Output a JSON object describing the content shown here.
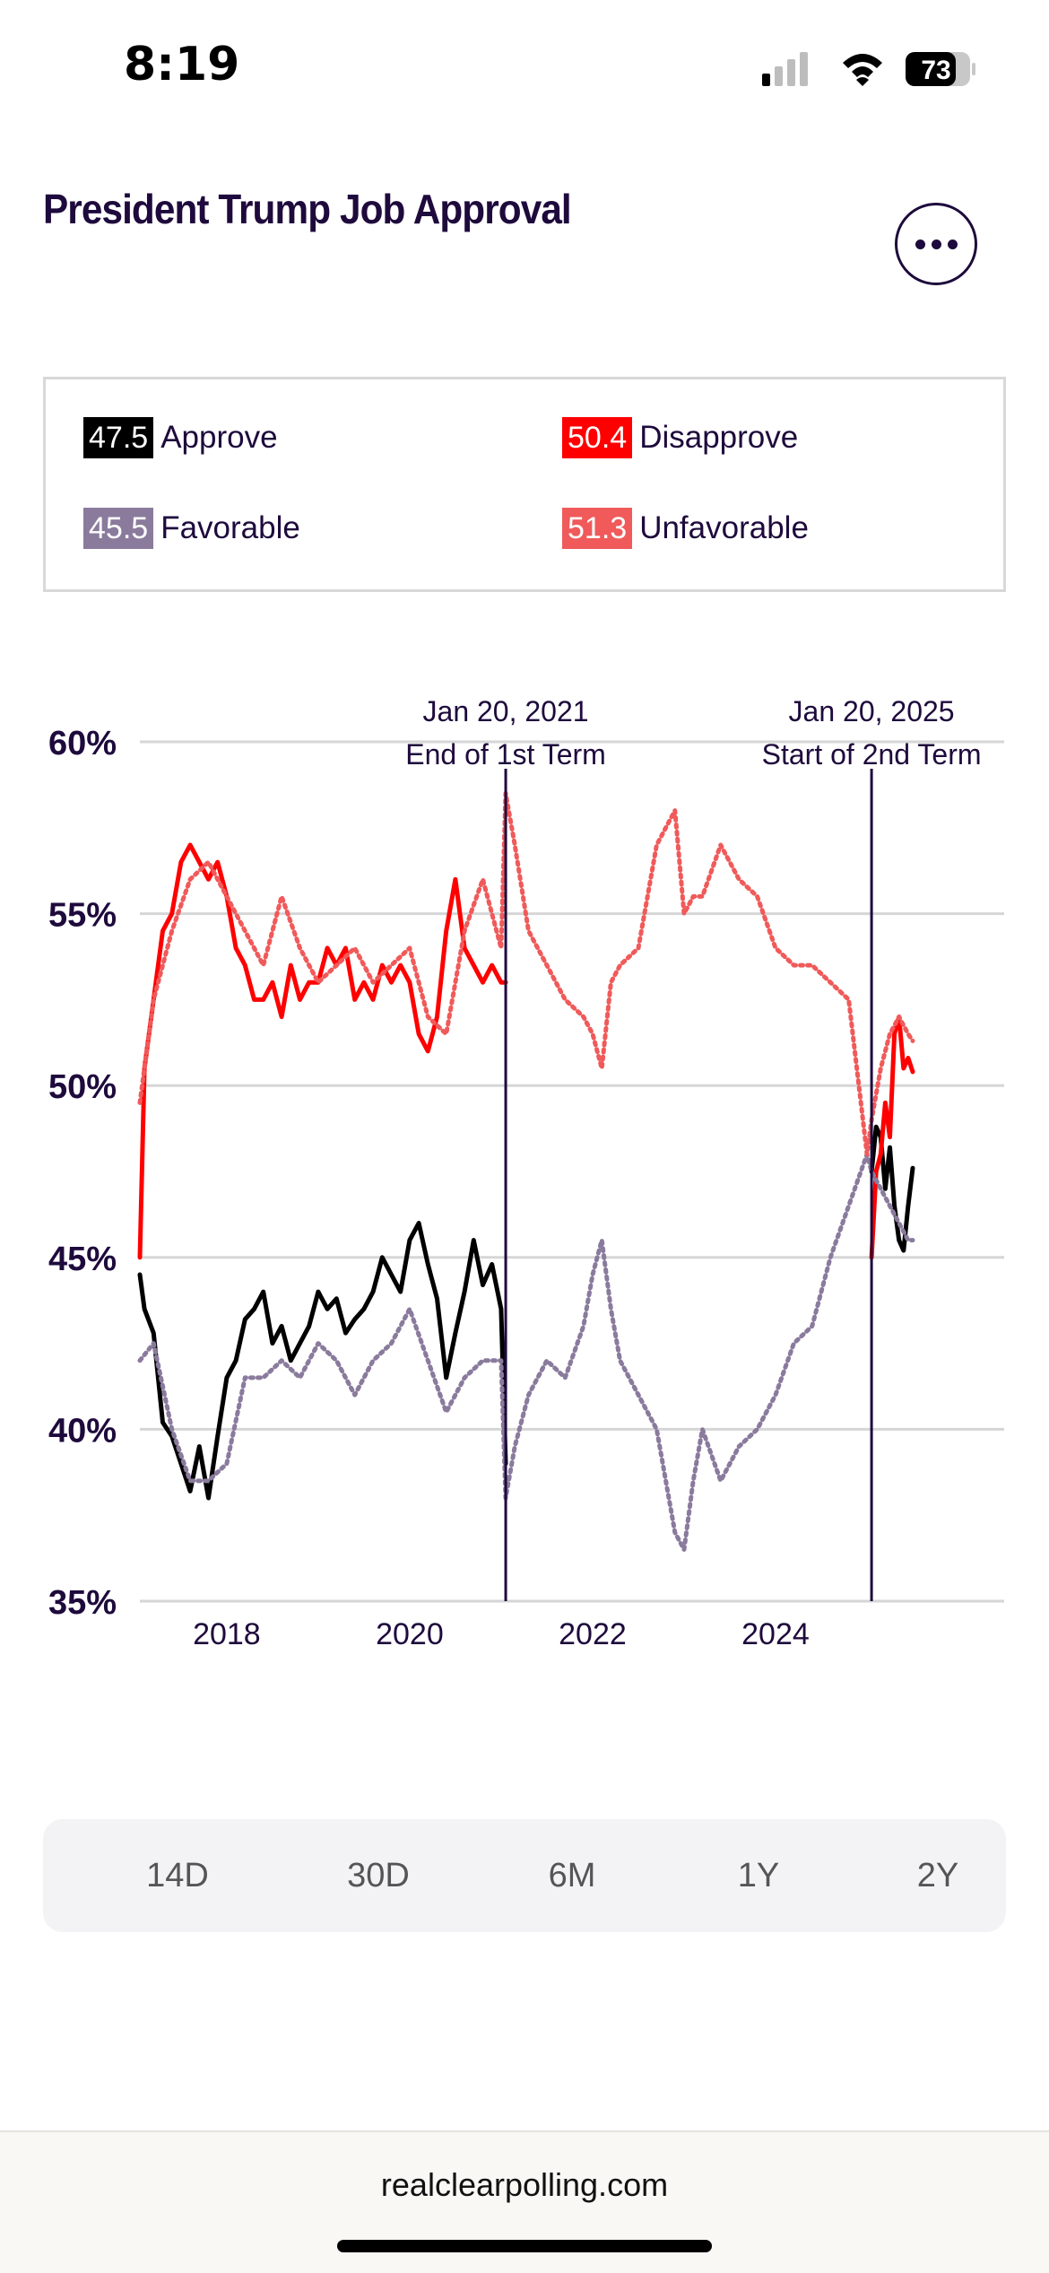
{
  "status_bar": {
    "time": "8:19",
    "battery": "73"
  },
  "header": {
    "title": "President Trump Job Approval"
  },
  "legend": [
    {
      "value": "47.5",
      "label": "Approve",
      "color": "#000000"
    },
    {
      "value": "50.4",
      "label": "Disapprove",
      "color": "#ff0000"
    },
    {
      "value": "45.5",
      "label": "Favorable",
      "color": "#8a7b9d"
    },
    {
      "value": "51.3",
      "label": "Unfavorable",
      "color": "#f05a5a"
    }
  ],
  "range_buttons": [
    "14D",
    "30D",
    "6M",
    "1Y",
    "2Y"
  ],
  "footer": {
    "url": "realclearpolling.com"
  },
  "chart_data": {
    "type": "line",
    "ylim": [
      35,
      60
    ],
    "xlim": [
      2017.05,
      2026.5
    ],
    "yticks": [
      "35%",
      "40%",
      "45%",
      "50%",
      "55%",
      "60%"
    ],
    "xticks": [
      "2018",
      "2020",
      "2022",
      "2024"
    ],
    "grid": true,
    "annotations": [
      {
        "x": 2021.05,
        "line1": "Jan 20, 2021",
        "line2": "End of 1st Term"
      },
      {
        "x": 2025.05,
        "line1": "Jan 20, 2025",
        "line2": "Start of 2nd Term"
      }
    ],
    "series": [
      {
        "name": "Approve",
        "color": "#000000",
        "style": "solid",
        "x": [
          2017.05,
          2017.1,
          2017.2,
          2017.3,
          2017.4,
          2017.5,
          2017.6,
          2017.7,
          2017.8,
          2017.9,
          2018.0,
          2018.1,
          2018.2,
          2018.3,
          2018.4,
          2018.5,
          2018.6,
          2018.7,
          2018.8,
          2018.9,
          2019.0,
          2019.1,
          2019.2,
          2019.3,
          2019.4,
          2019.5,
          2019.6,
          2019.7,
          2019.8,
          2019.9,
          2020.0,
          2020.1,
          2020.2,
          2020.3,
          2020.4,
          2020.5,
          2020.6,
          2020.7,
          2020.8,
          2020.9,
          2021.0,
          2021.05,
          2025.05,
          2025.1,
          2025.15,
          2025.2,
          2025.25,
          2025.3,
          2025.35,
          2025.4,
          2025.45,
          2025.5
        ],
        "values": [
          44.5,
          43.5,
          42.8,
          40.2,
          39.8,
          39.0,
          38.2,
          39.5,
          38.0,
          39.8,
          41.5,
          42.0,
          43.2,
          43.5,
          44.0,
          42.5,
          43.0,
          42.0,
          42.5,
          43.0,
          44.0,
          43.5,
          43.8,
          42.8,
          43.2,
          43.5,
          44.0,
          45.0,
          44.5,
          44.0,
          45.5,
          46.0,
          44.8,
          43.8,
          41.5,
          42.8,
          44.0,
          45.5,
          44.2,
          44.8,
          43.5,
          39.0,
          47.5,
          48.8,
          48.5,
          47.0,
          48.2,
          46.5,
          45.5,
          45.2,
          46.5,
          47.6
        ]
      },
      {
        "name": "Disapprove",
        "color": "#ff0000",
        "style": "solid",
        "x": [
          2017.05,
          2017.1,
          2017.2,
          2017.3,
          2017.4,
          2017.5,
          2017.6,
          2017.7,
          2017.8,
          2017.9,
          2018.0,
          2018.1,
          2018.2,
          2018.3,
          2018.4,
          2018.5,
          2018.6,
          2018.7,
          2018.8,
          2018.9,
          2019.0,
          2019.1,
          2019.2,
          2019.3,
          2019.4,
          2019.5,
          2019.6,
          2019.7,
          2019.8,
          2019.9,
          2020.0,
          2020.1,
          2020.2,
          2020.3,
          2020.4,
          2020.5,
          2020.6,
          2020.7,
          2020.8,
          2020.9,
          2021.0,
          2021.05,
          2025.05,
          2025.1,
          2025.15,
          2025.2,
          2025.25,
          2025.3,
          2025.35,
          2025.4,
          2025.45,
          2025.5
        ],
        "values": [
          45.0,
          50.5,
          52.5,
          54.5,
          55.0,
          56.5,
          57.0,
          56.5,
          56.0,
          56.5,
          55.5,
          54.0,
          53.5,
          52.5,
          52.5,
          53.0,
          52.0,
          53.5,
          52.5,
          53.0,
          53.0,
          54.0,
          53.5,
          54.0,
          52.5,
          53.0,
          52.5,
          53.5,
          53.0,
          53.5,
          53.0,
          51.5,
          51.0,
          52.0,
          54.5,
          56.0,
          54.0,
          53.5,
          53.0,
          53.5,
          53.0,
          53.0,
          45.0,
          47.5,
          48.0,
          49.5,
          48.5,
          51.5,
          52.0,
          50.5,
          50.8,
          50.4
        ]
      },
      {
        "name": "Favorable",
        "color": "#8a7b9d",
        "style": "dotted",
        "x": [
          2017.05,
          2017.2,
          2017.4,
          2017.6,
          2017.8,
          2018.0,
          2018.2,
          2018.4,
          2018.6,
          2018.8,
          2019.0,
          2019.2,
          2019.4,
          2019.6,
          2019.8,
          2020.0,
          2020.2,
          2020.4,
          2020.6,
          2020.8,
          2021.0,
          2021.05,
          2021.15,
          2021.3,
          2021.5,
          2021.7,
          2021.9,
          2022.0,
          2022.1,
          2022.2,
          2022.3,
          2022.5,
          2022.7,
          2022.9,
          2023.0,
          2023.1,
          2023.2,
          2023.4,
          2023.6,
          2023.8,
          2024.0,
          2024.2,
          2024.4,
          2024.6,
          2024.8,
          2025.0,
          2025.05,
          2025.15,
          2025.25,
          2025.35,
          2025.45,
          2025.5
        ],
        "values": [
          42.0,
          42.5,
          40.0,
          38.5,
          38.5,
          39.0,
          41.5,
          41.5,
          42.0,
          41.5,
          42.5,
          42.0,
          41.0,
          42.0,
          42.5,
          43.5,
          42.0,
          40.5,
          41.5,
          42.0,
          42.0,
          38.0,
          39.5,
          41.0,
          42.0,
          41.5,
          43.0,
          44.5,
          45.5,
          43.5,
          42.0,
          41.0,
          40.0,
          37.0,
          36.5,
          38.5,
          40.0,
          38.5,
          39.5,
          40.0,
          41.0,
          42.5,
          43.0,
          45.0,
          46.5,
          48.0,
          47.5,
          47.0,
          46.5,
          46.0,
          45.5,
          45.5
        ]
      },
      {
        "name": "Unfavorable",
        "color": "#f05a5a",
        "style": "dotted",
        "x": [
          2017.05,
          2017.2,
          2017.4,
          2017.6,
          2017.8,
          2018.0,
          2018.2,
          2018.4,
          2018.6,
          2018.8,
          2019.0,
          2019.2,
          2019.4,
          2019.6,
          2019.8,
          2020.0,
          2020.2,
          2020.4,
          2020.6,
          2020.8,
          2021.0,
          2021.05,
          2021.15,
          2021.3,
          2021.5,
          2021.7,
          2021.9,
          2022.0,
          2022.1,
          2022.2,
          2022.3,
          2022.5,
          2022.7,
          2022.9,
          2023.0,
          2023.1,
          2023.2,
          2023.4,
          2023.6,
          2023.8,
          2024.0,
          2024.2,
          2024.4,
          2024.6,
          2024.8,
          2025.0,
          2025.05,
          2025.15,
          2025.25,
          2025.35,
          2025.45,
          2025.5
        ],
        "values": [
          49.5,
          52.5,
          54.5,
          56.0,
          56.5,
          55.5,
          54.5,
          53.5,
          55.5,
          54.0,
          53.0,
          53.5,
          54.0,
          53.0,
          53.5,
          54.0,
          52.0,
          51.5,
          54.5,
          56.0,
          54.0,
          58.5,
          57.0,
          54.5,
          53.5,
          52.5,
          52.0,
          51.5,
          50.5,
          53.0,
          53.5,
          54.0,
          57.0,
          58.0,
          55.0,
          55.5,
          55.5,
          57.0,
          56.0,
          55.5,
          54.0,
          53.5,
          53.5,
          53.0,
          52.5,
          48.0,
          49.0,
          50.5,
          51.5,
          52.0,
          51.5,
          51.3
        ]
      }
    ]
  }
}
